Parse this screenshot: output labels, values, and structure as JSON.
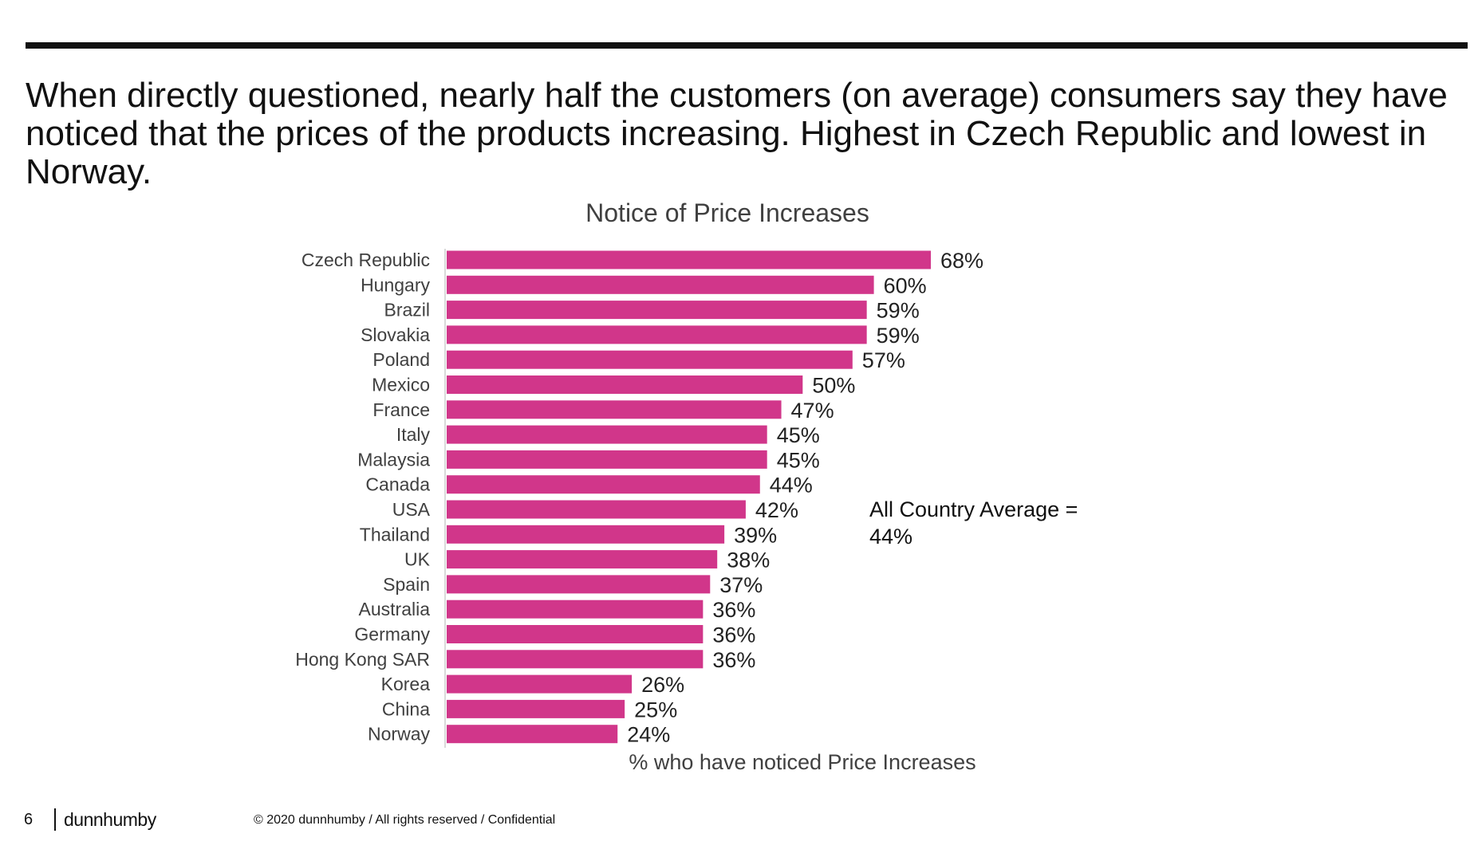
{
  "slide": {
    "headline": "When directly questioned, nearly half the customers (on average) consumers say they have noticed that the prices of the products increasing.  Highest in Czech Republic and lowest in Norway.",
    "average_note": {
      "line1": "All Country Average =",
      "line2": "44%"
    },
    "footer": {
      "page_number": "6",
      "brand": "dunnhumby",
      "copyright": "© 2020 dunnhumby / All rights reserved / Confidential"
    }
  },
  "colors": {
    "bar": "#D1368A",
    "title_text": "#404040",
    "label_text": "#404040",
    "value_text": "#222222",
    "axis": "#D9D9D9"
  },
  "chart_data": {
    "type": "bar",
    "orientation": "horizontal",
    "title": "Notice of Price Increases",
    "xlabel": "% who have noticed Price Increases",
    "ylabel": "",
    "xlim": [
      0,
      100
    ],
    "grid": false,
    "legend": "none",
    "value_suffix": "%",
    "categories": [
      "Czech Republic",
      "Hungary",
      "Brazil",
      "Slovakia",
      "Poland",
      "Mexico",
      "France",
      "Italy",
      "Malaysia",
      "Canada",
      "USA",
      "Thailand",
      "UK",
      "Spain",
      "Australia",
      "Germany",
      "Hong Kong SAR",
      "Korea",
      "China",
      "Norway"
    ],
    "values": [
      68,
      60,
      59,
      59,
      57,
      50,
      47,
      45,
      45,
      44,
      42,
      39,
      38,
      37,
      36,
      36,
      36,
      26,
      25,
      24
    ],
    "value_labels": [
      "68%",
      "60%",
      "59%",
      "59%",
      "57%",
      "50%",
      "47%",
      "45%",
      "45%",
      "44%",
      "42%",
      "39%",
      "38%",
      "37%",
      "36%",
      "36%",
      "36%",
      "26%",
      "25%",
      "24%"
    ]
  }
}
